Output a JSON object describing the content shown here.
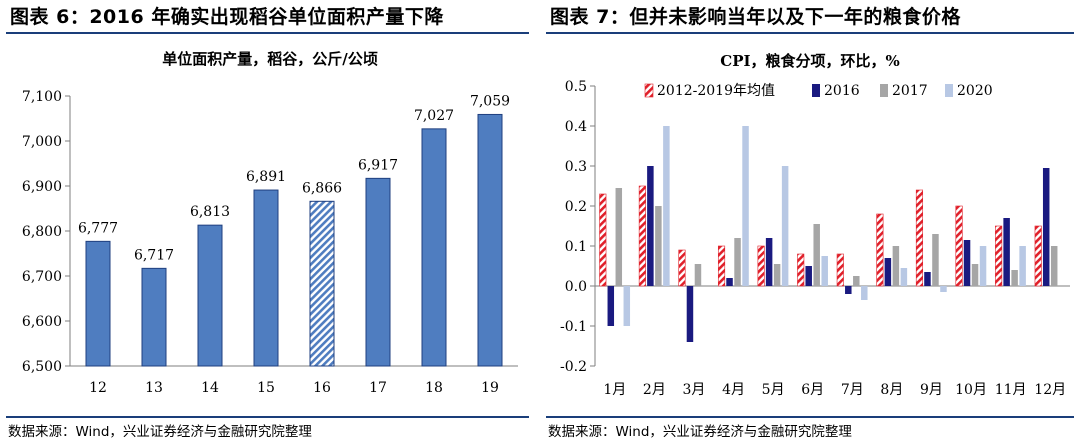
{
  "left": {
    "figure_title": "图表 6：2016 年确实出现稻谷单位面积产量下降",
    "source": "数据来源：Wind，兴业证券经济与金融研究院整理",
    "colors": {
      "bar": "#4f7dc0",
      "bar_stroke": "#1f3f7f",
      "highlight_stripe": "#4f7dc0"
    }
  },
  "right": {
    "figure_title": "图表 7：但并未影响当年以及下一年的粮食价格",
    "source": "数据来源：Wind，兴业证券经济与金融研究院整理",
    "colors": {
      "s0": "#e0202a",
      "s1": "#1a1a80",
      "s2": "#a6a6a6",
      "s3": "#b8c8e4"
    }
  },
  "chart_data": [
    {
      "type": "bar",
      "title": "单位面积产量，稻谷，公斤/公顷",
      "categories": [
        "12",
        "13",
        "14",
        "15",
        "16",
        "17",
        "18",
        "19"
      ],
      "values": [
        6777,
        6717,
        6813,
        6891,
        6866,
        6917,
        7027,
        7059
      ],
      "value_labels": [
        "6,777",
        "6,717",
        "6,813",
        "6,891",
        "6,866",
        "6,917",
        "7,027",
        "7,059"
      ],
      "highlighted_category": "16",
      "ylim": [
        6500,
        7100
      ],
      "yticks": [
        6500,
        6600,
        6700,
        6800,
        6900,
        7000,
        7100
      ],
      "ytick_labels": [
        "6,500",
        "6,600",
        "6,700",
        "6,800",
        "6,900",
        "7,000",
        "7,100"
      ],
      "xlabel": "",
      "ylabel": "",
      "grid": false
    },
    {
      "type": "bar",
      "title": "CPI，粮食分项，环比，%",
      "categories": [
        "1月",
        "2月",
        "3月",
        "4月",
        "5月",
        "6月",
        "7月",
        "8月",
        "9月",
        "10月",
        "11月",
        "12月"
      ],
      "series": [
        {
          "name": "2012-2019年均值",
          "values": [
            0.23,
            0.25,
            0.09,
            0.1,
            0.1,
            0.08,
            0.08,
            0.18,
            0.24,
            0.2,
            0.15,
            0.15
          ]
        },
        {
          "name": "2016",
          "values": [
            -0.1,
            0.3,
            -0.14,
            0.02,
            0.12,
            0.05,
            -0.02,
            0.07,
            0.035,
            0.115,
            0.17,
            0.295
          ]
        },
        {
          "name": "2017",
          "values": [
            0.245,
            0.2,
            0.055,
            0.12,
            0.055,
            0.155,
            0.025,
            0.1,
            0.13,
            0.055,
            0.04,
            0.1
          ]
        },
        {
          "name": "2020",
          "values": [
            -0.1,
            0.4,
            null,
            0.4,
            0.3,
            0.075,
            -0.035,
            0.045,
            -0.015,
            0.1,
            0.1,
            null
          ]
        }
      ],
      "ylim": [
        -0.2,
        0.5
      ],
      "yticks": [
        -0.2,
        -0.1,
        0,
        0.1,
        0.2,
        0.3,
        0.4,
        0.5
      ],
      "ytick_labels": [
        "-0.2",
        "-0.1",
        "0.0",
        "0.1",
        "0.2",
        "0.3",
        "0.4",
        "0.5"
      ],
      "legend": "top",
      "xlabel": "",
      "ylabel": "",
      "grid": false
    }
  ]
}
